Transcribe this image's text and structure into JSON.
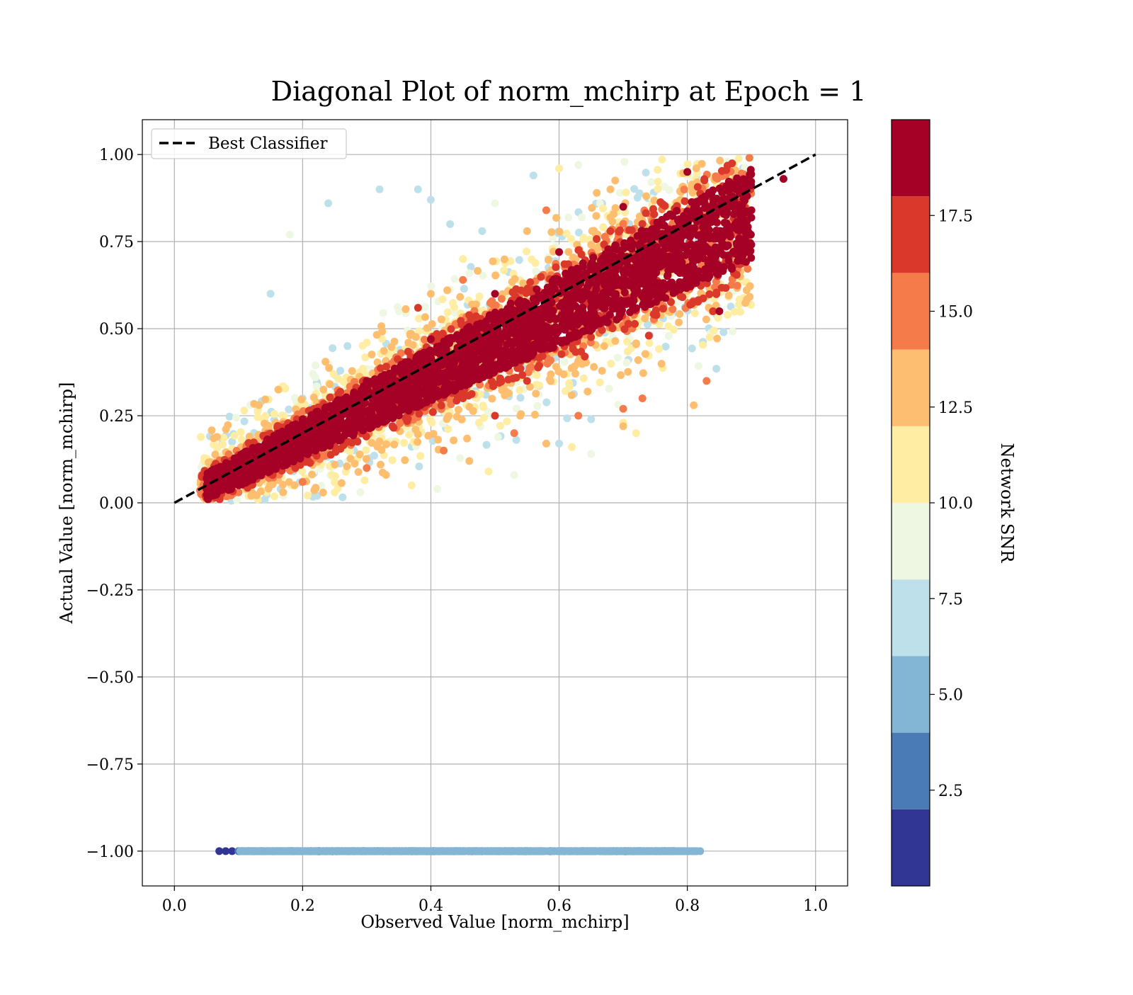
{
  "chart_data": {
    "type": "scatter",
    "title": "Diagonal Plot of norm_mchirp at Epoch = 1",
    "xlabel": "Observed Value [norm_mchirp]",
    "ylabel": "Actual Value [norm_mchirp]",
    "xlim": [
      -0.05,
      1.05
    ],
    "ylim": [
      -1.1,
      1.1
    ],
    "x_ticks": [
      0.0,
      0.2,
      0.4,
      0.6,
      0.8,
      1.0
    ],
    "x_tick_labels": [
      "0.0",
      "0.2",
      "0.4",
      "0.6",
      "0.8",
      "1.0"
    ],
    "y_ticks": [
      1.0,
      0.75,
      0.5,
      0.25,
      0.0,
      -0.25,
      -0.5,
      -0.75,
      -1.0
    ],
    "y_tick_labels": [
      "1.00",
      "0.75",
      "0.50",
      "0.25",
      "0.00",
      "−0.25",
      "−0.50",
      "−0.75",
      "−1.00"
    ],
    "grid": true,
    "legend": {
      "position": "upper-left",
      "entries": [
        {
          "label": "Best Classifier",
          "style": "dashed",
          "color": "#000000"
        }
      ]
    },
    "best_classifier_line": {
      "x": [
        0.0,
        1.0
      ],
      "y": [
        0.0,
        1.0
      ]
    },
    "colorbar": {
      "label": "Network SNR",
      "range": [
        0,
        20
      ],
      "ticks": [
        2.5,
        5.0,
        7.5,
        10.0,
        12.5,
        15.0,
        17.5
      ],
      "tick_labels": [
        "2.5",
        "5.0",
        "7.5",
        "10.0",
        "12.5",
        "15.0",
        "17.5"
      ],
      "bands": [
        {
          "from": 0,
          "to": 2,
          "color": "#313695"
        },
        {
          "from": 2,
          "to": 4,
          "color": "#4a7bb7"
        },
        {
          "from": 4,
          "to": 6,
          "color": "#83b5d5"
        },
        {
          "from": 6,
          "to": 8,
          "color": "#bde0ea"
        },
        {
          "from": 8,
          "to": 10,
          "color": "#eef7e1"
        },
        {
          "from": 10,
          "to": 12,
          "color": "#feeda2"
        },
        {
          "from": 12,
          "to": 14,
          "color": "#fdbf6f"
        },
        {
          "from": 14,
          "to": 16,
          "color": "#f57c4a"
        },
        {
          "from": 16,
          "to": 18,
          "color": "#da382a"
        },
        {
          "from": 18,
          "to": 20,
          "color": "#a50026"
        }
      ]
    },
    "series": [
      {
        "snr": 19,
        "color": "#a50026",
        "x": [
          0.05,
          0.1,
          0.15,
          0.2,
          0.25,
          0.3,
          0.35,
          0.4,
          0.45,
          0.5,
          0.55,
          0.6,
          0.65,
          0.7,
          0.75,
          0.8,
          0.85,
          0.9,
          0.8,
          0.7,
          0.6,
          0.5,
          0.4,
          0.3,
          0.2,
          0.1,
          0.85,
          0.95
        ],
        "y": [
          0.04,
          0.08,
          0.13,
          0.17,
          0.22,
          0.26,
          0.31,
          0.35,
          0.4,
          0.44,
          0.49,
          0.53,
          0.58,
          0.62,
          0.67,
          0.72,
          0.78,
          0.84,
          0.95,
          0.85,
          0.72,
          0.6,
          0.47,
          0.35,
          0.24,
          0.11,
          0.55,
          0.93
        ]
      },
      {
        "snr": 17,
        "color": "#da382a",
        "x": [
          0.08,
          0.16,
          0.25,
          0.34,
          0.45,
          0.55,
          0.64,
          0.74,
          0.84,
          0.68,
          0.5,
          0.38
        ],
        "y": [
          0.05,
          0.12,
          0.17,
          0.22,
          0.3,
          0.35,
          0.42,
          0.48,
          0.55,
          0.78,
          0.25,
          0.56
        ]
      },
      {
        "snr": 15,
        "color": "#f57c4a",
        "x": [
          0.1,
          0.2,
          0.3,
          0.42,
          0.53,
          0.63,
          0.73,
          0.83,
          0.58,
          0.45,
          0.7
        ],
        "y": [
          0.03,
          0.06,
          0.1,
          0.15,
          0.2,
          0.25,
          0.3,
          0.35,
          0.84,
          0.64,
          0.27
        ]
      },
      {
        "snr": 13,
        "color": "#fdbf6f",
        "x": [
          0.12,
          0.22,
          0.33,
          0.46,
          0.58,
          0.7,
          0.81,
          0.4,
          0.55,
          0.68
        ],
        "y": [
          0.02,
          0.04,
          0.08,
          0.12,
          0.17,
          0.22,
          0.28,
          0.6,
          0.78,
          0.9
        ]
      },
      {
        "snr": 11,
        "color": "#feeda2",
        "x": [
          0.13,
          0.25,
          0.37,
          0.49,
          0.62,
          0.72,
          0.3,
          0.45,
          0.6,
          0.7
        ],
        "y": [
          0.01,
          0.03,
          0.05,
          0.09,
          0.16,
          0.2,
          0.46,
          0.7,
          0.96,
          0.23
        ]
      },
      {
        "snr": 9,
        "color": "#eef7e1",
        "x": [
          0.17,
          0.29,
          0.41,
          0.53,
          0.65,
          0.22,
          0.35,
          0.5,
          0.63,
          0.18
        ],
        "y": [
          0.02,
          0.03,
          0.04,
          0.08,
          0.14,
          0.36,
          0.55,
          0.86,
          0.97,
          0.77
        ]
      },
      {
        "snr": 7,
        "color": "#bde0ea",
        "x": [
          0.15,
          0.2,
          0.27,
          0.32,
          0.4,
          0.48,
          0.56,
          0.6,
          0.24,
          0.38,
          0.43,
          0.65,
          0.52
        ],
        "y": [
          0.6,
          0.3,
          0.45,
          0.9,
          0.87,
          0.78,
          0.94,
          0.17,
          0.86,
          0.9,
          0.8,
          0.24,
          0.55
        ]
      },
      {
        "snr": 5,
        "color": "#83b5d5",
        "x": [
          0.11,
          0.2,
          0.3,
          0.4,
          0.5,
          0.6,
          0.7,
          0.76,
          0.79,
          0.82
        ],
        "y": [
          -1.0,
          -1.0,
          -1.0,
          -1.0,
          -1.0,
          -1.0,
          -1.0,
          -1.0,
          -1.0,
          -1.0
        ]
      },
      {
        "snr": 3,
        "color": "#4a7bb7",
        "x": [
          0.1,
          0.72,
          0.75,
          0.78
        ],
        "y": [
          -1.0,
          -1.0,
          -1.0,
          -1.0
        ]
      },
      {
        "snr": 1,
        "color": "#313695",
        "x": [
          0.07,
          0.08,
          0.09,
          0.74,
          0.76,
          0.77
        ],
        "y": [
          -1.0,
          -1.0,
          -1.0,
          -1.0,
          -1.0,
          -1.0
        ]
      }
    ]
  }
}
